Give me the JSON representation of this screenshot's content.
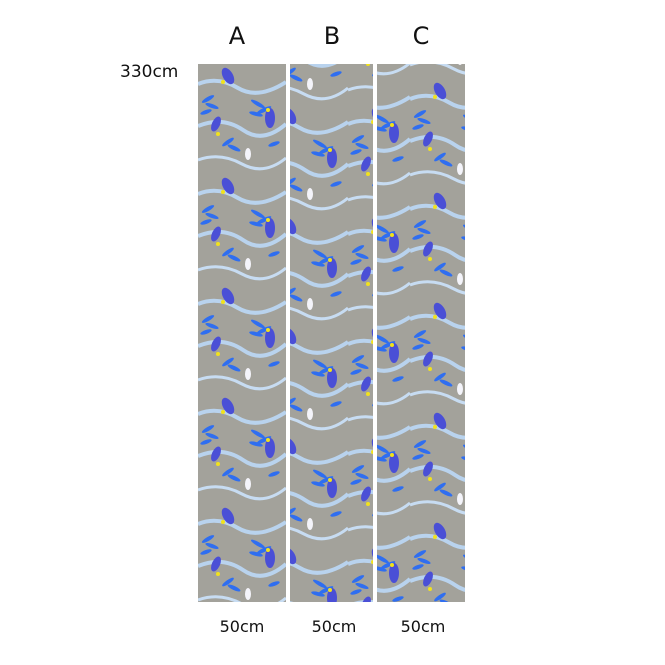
{
  "height_label": "330cm",
  "panels": [
    {
      "label": "A",
      "width_label": "50cm"
    },
    {
      "label": "B",
      "width_label": "50cm"
    },
    {
      "label": "C",
      "width_label": "50cm"
    }
  ],
  "colors": {
    "background": "#a3a29b",
    "leaf": "#2f6ef0",
    "branch": "#b9d3ee",
    "bird": "#4a4fd6",
    "accent": "#f2e21a"
  }
}
